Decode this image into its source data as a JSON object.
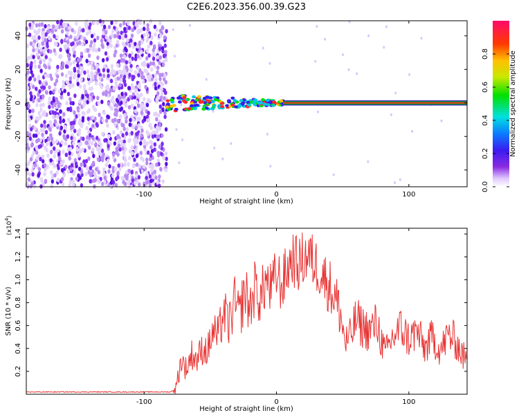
{
  "title": "C2E6.2023.356.00.39.G23",
  "colors": {
    "points": "#7b2cf0",
    "trace": "#e83232",
    "axis": "#000000"
  },
  "chart_data": [
    {
      "type": "heatmap",
      "xlabel": "Height of straight line (km)",
      "ylabel": "Frequency (Hz)",
      "xlim": [
        -189,
        144
      ],
      "ylim": [
        -50,
        49
      ],
      "xticks": [
        -100,
        0,
        100
      ],
      "yticks": [
        -40,
        -20,
        0,
        20,
        40
      ],
      "grid": false,
      "description_regions": [
        {
          "x_range": [
            -189,
            -83
          ],
          "freq_spread": [
            -50,
            49
          ],
          "amplitude": "low (0.1–0.3)"
        },
        {
          "x_range": [
            -83,
            5
          ],
          "freq_spread": [
            -5,
            5
          ],
          "amplitude": "medium to high (0.3–1.0)"
        },
        {
          "x_range": [
            5,
            144
          ],
          "freq_spread": [
            -1,
            1
          ],
          "amplitude": "high (≈1.0)"
        }
      ],
      "colorbar": {
        "label": "Normalized spectral amplitude",
        "ticks": [
          "0.0",
          "0.2",
          "0.4",
          "0.6",
          "0.8"
        ],
        "range": [
          0,
          1
        ]
      }
    },
    {
      "type": "line",
      "xlabel": "Height of straight line (km)",
      "ylabel": "SNR (10 * v/v)",
      "ymultiplier": "(x10",
      "ymultiplier_exp": "4",
      "ymultiplier_close": ")",
      "xlim": [
        -189,
        144
      ],
      "ylim": [
        0,
        1.45
      ],
      "xticks": [
        -100,
        0,
        100
      ],
      "yticks": [
        "0.2",
        "0.4",
        "0.6",
        "0.8",
        "1.0",
        "1.2",
        "1.4"
      ],
      "grid": false,
      "series": [
        {
          "x": [
            -189,
            -160,
            -130,
            -100,
            -80,
            -76,
            -72,
            -68,
            -64,
            -60,
            -56,
            -52,
            -48,
            -44,
            -40,
            -36,
            -32,
            -28,
            -24,
            -20,
            -16,
            -12,
            -8,
            -4,
            0,
            4,
            8,
            12,
            16,
            20,
            24,
            28,
            32,
            36,
            40,
            44,
            48,
            52,
            56,
            60,
            64,
            70,
            76,
            82,
            88,
            94,
            100,
            106,
            112,
            118,
            124,
            130,
            136,
            140,
            144
          ],
          "y": [
            0.02,
            0.02,
            0.02,
            0.02,
            0.02,
            0.05,
            0.3,
            0.22,
            0.35,
            0.3,
            0.4,
            0.38,
            0.55,
            0.5,
            0.72,
            0.6,
            0.8,
            0.68,
            0.9,
            0.75,
            0.95,
            0.82,
            1.0,
            0.9,
            1.05,
            0.95,
            1.08,
            1.2,
            1.12,
            1.18,
            1.22,
            1.15,
            1.1,
            1.02,
            0.95,
            0.85,
            0.72,
            0.45,
            0.5,
            0.65,
            0.6,
            0.55,
            0.62,
            0.35,
            0.5,
            0.58,
            0.48,
            0.55,
            0.4,
            0.5,
            0.38,
            0.52,
            0.45,
            0.35,
            0.3
          ]
        }
      ]
    }
  ]
}
